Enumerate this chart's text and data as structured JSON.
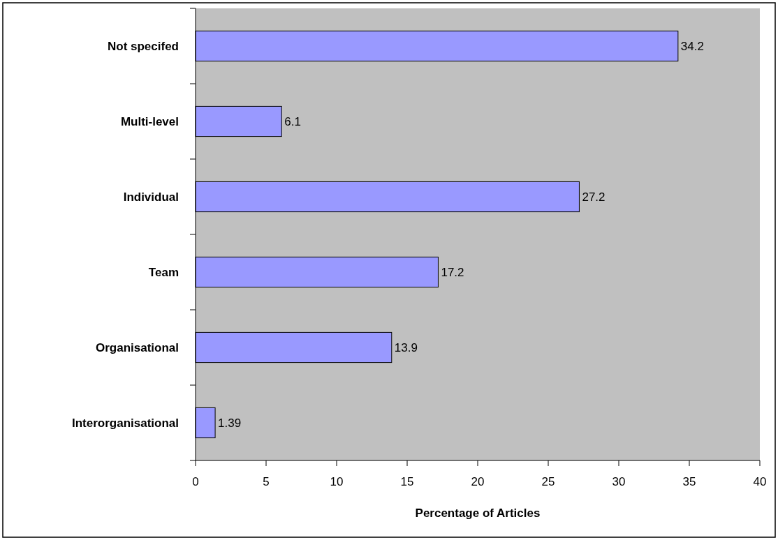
{
  "chart_data": {
    "type": "bar",
    "orientation": "horizontal",
    "xlabel": "Percentage of Articles",
    "categories": [
      "Not specifed",
      "Multi-level",
      "Individual",
      "Team",
      "Organisational",
      "Interorganisational"
    ],
    "values": [
      34.2,
      6.1,
      27.2,
      17.2,
      13.9,
      1.39
    ],
    "color": "#9999ff",
    "xlim": [
      0,
      40
    ],
    "xticks": [
      0,
      5,
      10,
      15,
      20,
      25,
      30,
      35,
      40
    ],
    "data_labels": true
  }
}
